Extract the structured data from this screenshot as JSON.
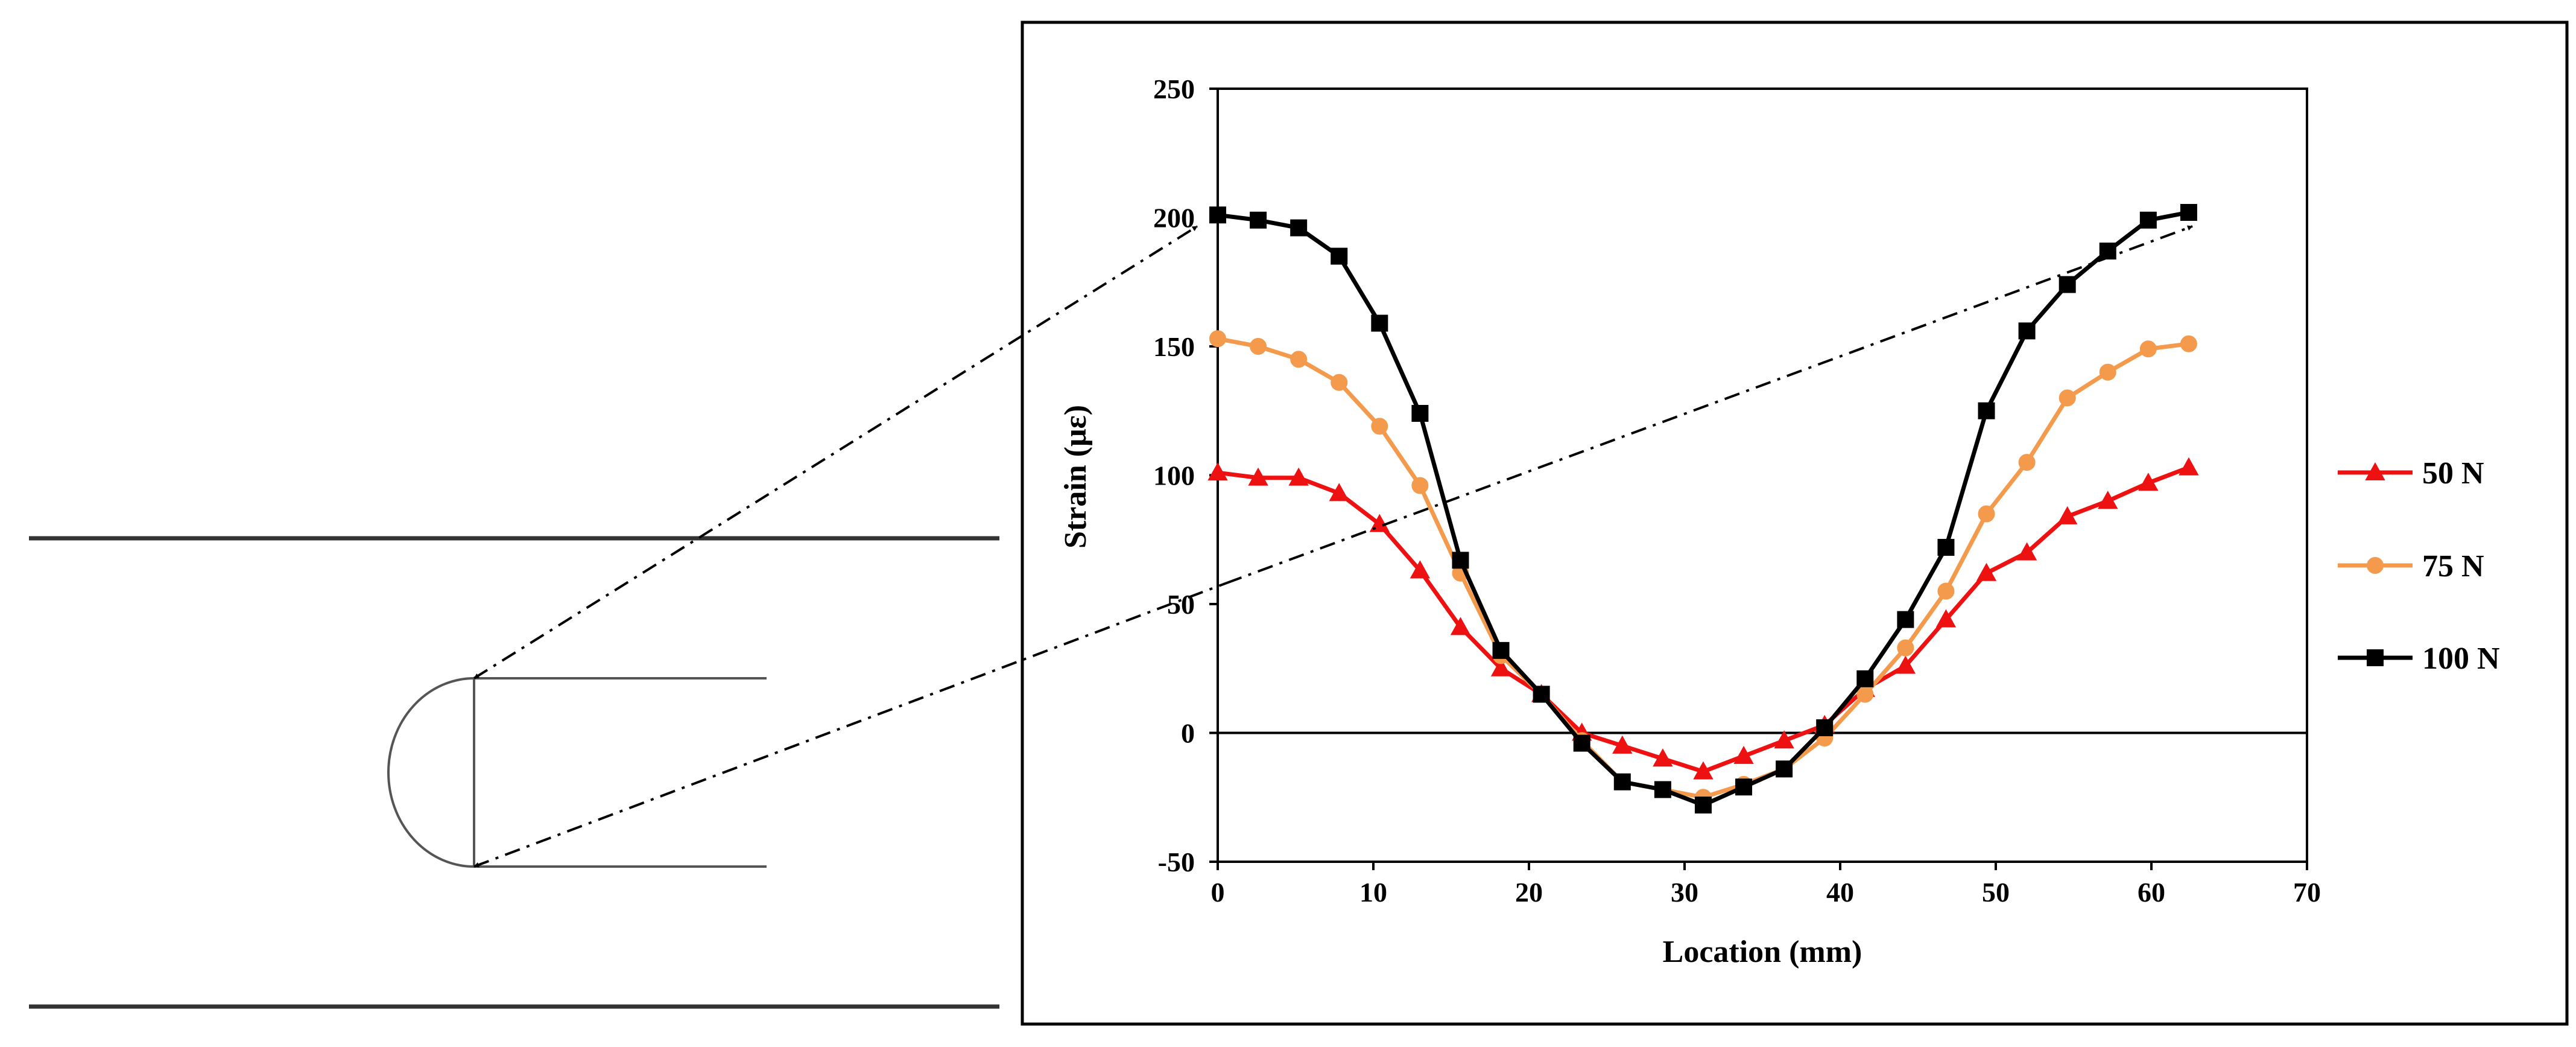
{
  "chart_data": {
    "type": "line",
    "title": "",
    "xlabel": "Location (mm)",
    "ylabel": "Strain (με)",
    "xlim": [
      0,
      70
    ],
    "ylim": [
      -50,
      250
    ],
    "xticks": [
      0,
      10,
      20,
      30,
      40,
      50,
      60,
      70
    ],
    "yticks": [
      -50,
      0,
      50,
      100,
      150,
      200,
      250
    ],
    "grid": false,
    "legend_position": "right",
    "x": [
      0,
      2.6,
      5.2,
      7.8,
      10.4,
      13.0,
      15.6,
      18.2,
      20.8,
      23.4,
      26.0,
      28.6,
      31.2,
      33.8,
      36.4,
      39.0,
      41.6,
      44.2,
      46.8,
      49.4,
      52.0,
      54.6,
      57.2,
      59.8,
      62.4
    ],
    "series": [
      {
        "name": "50 N",
        "color": "#ee1111",
        "marker": "triangle",
        "values": [
          101,
          99,
          99,
          93,
          81,
          63,
          41,
          25,
          15,
          0,
          -5,
          -10,
          -15,
          -9,
          -3,
          3,
          17,
          26,
          44,
          62,
          70,
          84,
          90,
          97,
          103
        ]
      },
      {
        "name": "75 N",
        "color": "#f39a4c",
        "marker": "circle",
        "values": [
          153,
          150,
          145,
          136,
          119,
          96,
          62,
          30,
          15,
          -3,
          -19,
          -22,
          -25,
          -20,
          -14,
          -2,
          15,
          33,
          55,
          85,
          105,
          130,
          140,
          149,
          151
        ]
      },
      {
        "name": "100 N",
        "color": "#000000",
        "marker": "square",
        "values": [
          201,
          199,
          196,
          185,
          159,
          124,
          67,
          32,
          15,
          -4,
          -19,
          -22,
          -28,
          -21,
          -14,
          2,
          21,
          44,
          72,
          125,
          156,
          174,
          187,
          199,
          202
        ]
      }
    ]
  },
  "diagram": {
    "name": "specimen-sketch"
  }
}
